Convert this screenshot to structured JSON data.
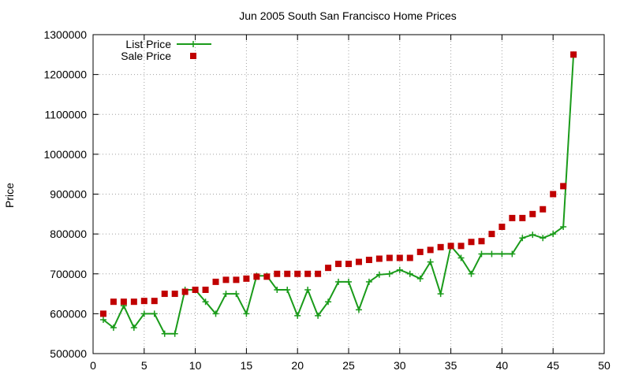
{
  "chart_data": {
    "type": "line",
    "title": "Jun 2005 South San Francisco Home Prices",
    "xlabel": "",
    "ylabel": "Price",
    "xlim": [
      0,
      50
    ],
    "ylim": [
      500000,
      1300000
    ],
    "x_ticks": [
      0,
      5,
      10,
      15,
      20,
      25,
      30,
      35,
      40,
      45,
      50
    ],
    "y_ticks": [
      500000,
      600000,
      700000,
      800000,
      900000,
      1000000,
      1100000,
      1200000,
      1300000
    ],
    "grid": true,
    "legend_position": "top-left",
    "series": [
      {
        "name": "List Price",
        "style": "line+cross",
        "color": "#1a9b1a",
        "x": [
          1,
          2,
          3,
          4,
          5,
          6,
          7,
          8,
          9,
          10,
          11,
          12,
          13,
          14,
          15,
          16,
          17,
          18,
          19,
          20,
          21,
          22,
          23,
          24,
          25,
          26,
          27,
          28,
          29,
          30,
          31,
          32,
          33,
          34,
          35,
          36,
          37,
          38,
          39,
          40,
          41,
          42,
          43,
          44,
          45,
          46,
          47
        ],
        "y": [
          585000,
          565000,
          620000,
          565000,
          600000,
          600000,
          550000,
          550000,
          660000,
          660000,
          630000,
          600000,
          650000,
          650000,
          600000,
          695000,
          695000,
          660000,
          660000,
          595000,
          660000,
          595000,
          630000,
          680000,
          680000,
          610000,
          680000,
          698000,
          700000,
          710000,
          700000,
          688000,
          730000,
          650000,
          770000,
          740000,
          700000,
          750000,
          750000,
          750000,
          750000,
          790000,
          798000,
          790000,
          800000,
          818000,
          1250000
        ]
      },
      {
        "name": "Sale Price",
        "style": "points",
        "color": "#c00000",
        "x": [
          1,
          2,
          3,
          4,
          5,
          6,
          7,
          8,
          9,
          10,
          11,
          12,
          13,
          14,
          15,
          16,
          17,
          18,
          19,
          20,
          21,
          22,
          23,
          24,
          25,
          26,
          27,
          28,
          29,
          30,
          31,
          32,
          33,
          34,
          35,
          36,
          37,
          38,
          39,
          40,
          41,
          42,
          43,
          44,
          45,
          46,
          47
        ],
        "y": [
          600000,
          630000,
          630000,
          630000,
          632000,
          632000,
          650000,
          650000,
          655000,
          660000,
          660000,
          680000,
          685000,
          685000,
          688000,
          693000,
          693000,
          700000,
          700000,
          700000,
          700000,
          700000,
          715000,
          725000,
          725000,
          730000,
          735000,
          738000,
          740000,
          740000,
          740000,
          755000,
          760000,
          767000,
          770000,
          770000,
          780000,
          782000,
          800000,
          818000,
          840000,
          840000,
          850000,
          862000,
          900000,
          920000,
          1250000
        ]
      }
    ]
  }
}
